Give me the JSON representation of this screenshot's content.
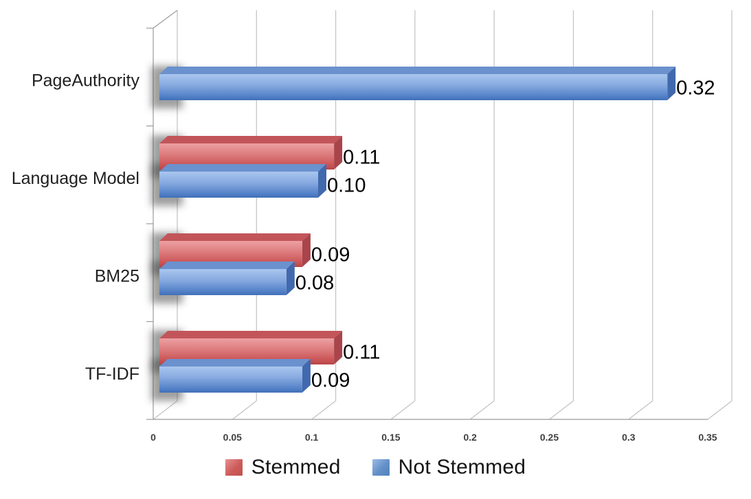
{
  "chart_data": {
    "type": "bar",
    "orientation": "horizontal",
    "effect": "3d",
    "title": "",
    "xlabel": "",
    "ylabel": "",
    "categories": [
      "PageAuthority",
      "Language Model",
      "BM25",
      "TF-IDF"
    ],
    "series": [
      {
        "name": "Stemmed",
        "color": "#C0504D",
        "values": [
          null,
          0.11,
          0.09,
          0.11
        ],
        "value_labels": [
          "",
          "0.11",
          "0.09",
          "0.11"
        ]
      },
      {
        "name": "Not Stemmed",
        "color": "#4F81BD",
        "values": [
          0.32,
          0.1,
          0.08,
          0.09
        ],
        "value_labels": [
          "0.32",
          "0.10",
          "0.08",
          "0.09"
        ]
      }
    ],
    "xlim": [
      0,
      0.35
    ],
    "x_ticks": [
      0,
      0.05,
      0.1,
      0.15,
      0.2,
      0.25,
      0.3,
      0.35
    ],
    "x_tick_labels": [
      "0",
      "0.05",
      "0.1",
      "0.15",
      "0.2",
      "0.25",
      "0.3",
      "0.35"
    ],
    "grid": "vertical-gridlines",
    "legend_position": "bottom",
    "colors": {
      "gridline": "#C2C2C2",
      "axis": "#9B9B9B",
      "data_label": "#000000",
      "category_label": "#1F1F1F",
      "tick_label": "#3F3F3F"
    }
  }
}
